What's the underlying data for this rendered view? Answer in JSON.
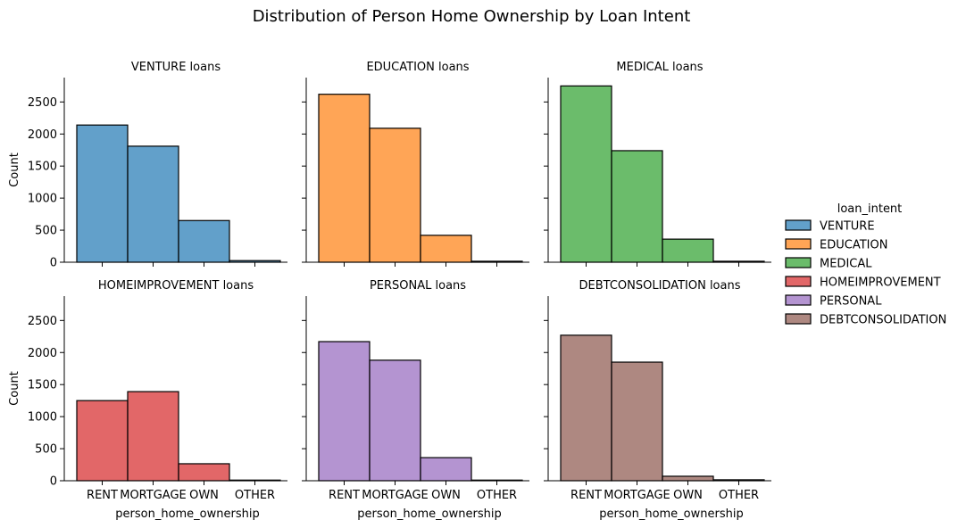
{
  "chart_data": {
    "type": "bar",
    "title": "Distribution of Person Home Ownership by Loan Intent",
    "xlabel": "person_home_ownership",
    "ylabel": "Count",
    "categories": [
      "RENT",
      "MORTGAGE",
      "OWN",
      "OTHER"
    ],
    "ylim": [
      0,
      2880
    ],
    "yticks": [
      0,
      500,
      1000,
      1500,
      2000,
      2500
    ],
    "grid": false,
    "legend": {
      "title": "loan_intent",
      "placement": "right",
      "entries": [
        {
          "name": "VENTURE",
          "color": "#1f77b4"
        },
        {
          "name": "EDUCATION",
          "color": "#ff7f0e"
        },
        {
          "name": "MEDICAL",
          "color": "#2ca02c"
        },
        {
          "name": "HOMEIMPROVEMENT",
          "color": "#d62728"
        },
        {
          "name": "PERSONAL",
          "color": "#9467bd"
        },
        {
          "name": "DEBTCONSOLIDATION",
          "color": "#8c564b"
        }
      ]
    },
    "panels": [
      {
        "title": "VENTURE loans",
        "series": "VENTURE",
        "color": "#1f77b4",
        "values": [
          2140,
          1810,
          650,
          25
        ]
      },
      {
        "title": "EDUCATION loans",
        "series": "EDUCATION",
        "color": "#ff7f0e",
        "values": [
          2620,
          2090,
          420,
          15
        ]
      },
      {
        "title": "MEDICAL loans",
        "series": "MEDICAL",
        "color": "#2ca02c",
        "values": [
          2750,
          1740,
          360,
          15
        ]
      },
      {
        "title": "HOMEIMPROVEMENT loans",
        "series": "HOMEIMPROVEMENT",
        "color": "#d62728",
        "values": [
          1250,
          1390,
          265,
          10
        ]
      },
      {
        "title": "PERSONAL loans",
        "series": "PERSONAL",
        "color": "#9467bd",
        "values": [
          2170,
          1880,
          360,
          10
        ]
      },
      {
        "title": "DEBTCONSOLIDATION loans",
        "series": "DEBTCONSOLIDATION",
        "color": "#8c564b",
        "values": [
          2270,
          1850,
          70,
          15
        ]
      }
    ]
  }
}
